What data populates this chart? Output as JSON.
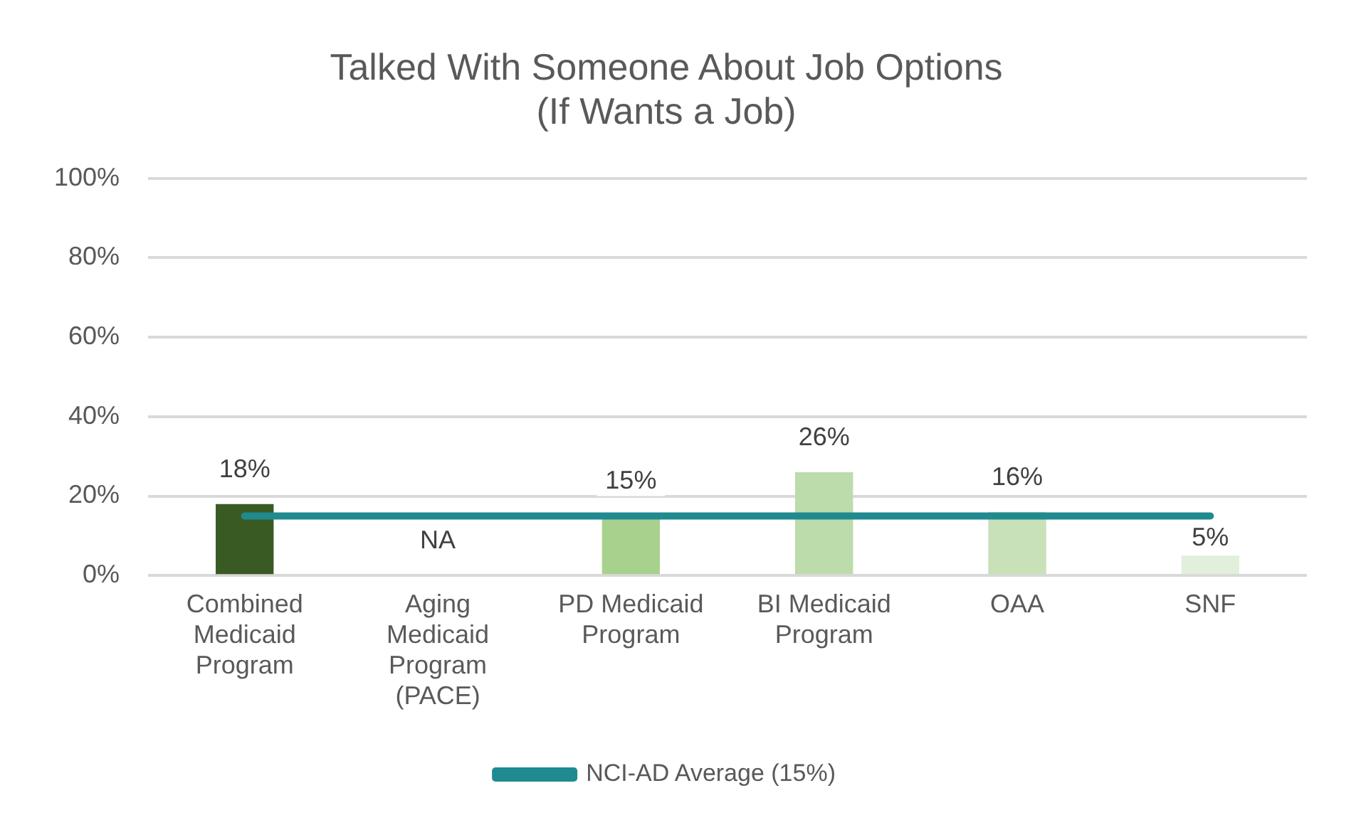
{
  "chart_data": {
    "type": "bar",
    "title": "Talked With Someone About Job Options\n(If Wants a Job)",
    "categories": [
      "Combined Medicaid Program",
      "Aging Medicaid Program (PACE)",
      "PD Medicaid Program",
      "BI Medicaid Program",
      "OAA",
      "SNF"
    ],
    "series": [
      {
        "colors": [
          "#3a5a24",
          "#8fbf6f",
          "#a9d18e",
          "#bcdcab",
          "#c8e1b9",
          "#e2efda"
        ],
        "values": [
          18,
          null,
          15,
          26,
          16,
          5
        ],
        "value_labels": [
          "18%",
          "NA",
          "15%",
          "26%",
          "16%",
          "5%"
        ]
      },
      {
        "type": "line",
        "name": "NCI-AD Average (15%)",
        "color": "#1f8a8f",
        "marker": "none",
        "values": [
          15,
          15,
          15,
          15,
          15,
          15
        ]
      }
    ],
    "ylim": [
      0,
      100
    ],
    "yticks": [
      {
        "value": 0,
        "label": "0%"
      },
      {
        "value": 20,
        "label": "20%"
      },
      {
        "value": 40,
        "label": "40%"
      },
      {
        "value": 60,
        "label": "60%"
      },
      {
        "value": 80,
        "label": "80%"
      },
      {
        "value": 100,
        "label": "100%"
      }
    ],
    "grid": "y",
    "legend": "bottom"
  }
}
